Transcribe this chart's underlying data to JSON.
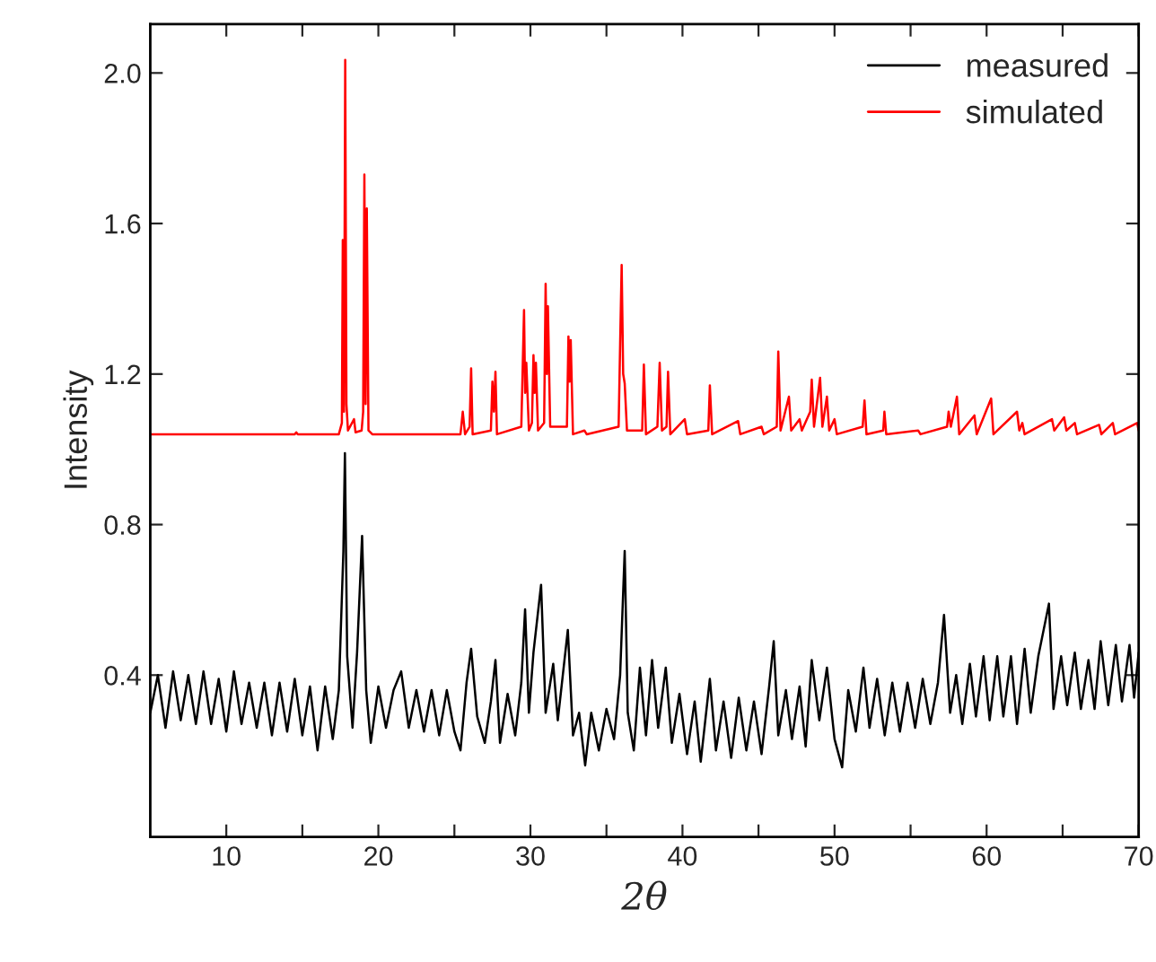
{
  "chart_data": {
    "type": "line",
    "xlabel": "2θ",
    "ylabel": "Intensity",
    "xlim": [
      5,
      70
    ],
    "ylim": [
      -0.03,
      2.13
    ],
    "xticks": [
      10,
      {
        "value": 15,
        "label": null
      },
      20,
      {
        "value": 25,
        "label": null
      },
      30,
      {
        "value": 35,
        "label": null
      },
      40,
      {
        "value": 45,
        "label": null
      },
      50,
      {
        "value": 55,
        "label": null
      },
      60,
      {
        "value": 65,
        "label": null
      },
      70
    ],
    "yticks": [
      0.4,
      0.8,
      1.2,
      1.6,
      {
        "value": 2.0,
        "label": "2.0"
      }
    ],
    "grid": false,
    "legend": "top right",
    "marker": "none",
    "line_style": "solid",
    "series": [
      {
        "name": "measured",
        "color": "#000000",
        "x": [
          5.0,
          5.5,
          6.0,
          6.5,
          7.0,
          7.5,
          8.0,
          8.5,
          9.0,
          9.5,
          10.0,
          10.5,
          11.0,
          11.5,
          12.0,
          12.5,
          13.0,
          13.5,
          14.0,
          14.5,
          15.0,
          15.5,
          16.0,
          16.5,
          17.0,
          17.4,
          17.7,
          17.8,
          17.95,
          18.3,
          18.6,
          18.93,
          19.2,
          19.5,
          20.0,
          20.5,
          21.0,
          21.5,
          22.0,
          22.5,
          23.0,
          23.5,
          24.0,
          24.5,
          25.0,
          25.4,
          25.8,
          26.1,
          26.5,
          27.0,
          27.4,
          27.7,
          28.0,
          28.5,
          29.0,
          29.4,
          29.65,
          29.9,
          30.2,
          30.7,
          31.0,
          31.5,
          31.8,
          32.46,
          32.8,
          33.2,
          33.6,
          34.0,
          34.5,
          35.0,
          35.5,
          35.9,
          36.2,
          36.4,
          36.8,
          37.2,
          37.6,
          38.0,
          38.4,
          38.9,
          39.3,
          39.8,
          40.3,
          40.8,
          41.2,
          41.8,
          42.2,
          42.7,
          43.2,
          43.7,
          44.2,
          44.7,
          45.2,
          45.7,
          46.0,
          46.3,
          46.8,
          47.2,
          47.7,
          48.1,
          48.5,
          49.0,
          49.5,
          50.0,
          50.5,
          50.9,
          51.4,
          51.9,
          52.3,
          52.8,
          53.3,
          53.8,
          54.3,
          54.8,
          55.3,
          55.8,
          56.3,
          56.8,
          57.2,
          57.6,
          58.0,
          58.4,
          58.9,
          59.3,
          59.8,
          60.2,
          60.7,
          61.1,
          61.6,
          62.0,
          62.5,
          62.9,
          63.4,
          64.1,
          64.4,
          64.9,
          65.3,
          65.8,
          66.2,
          66.7,
          67.1,
          67.5,
          68.0,
          68.5,
          68.9,
          69.4,
          69.7,
          70.0
        ],
        "values": [
          0.3,
          0.4,
          0.26,
          0.41,
          0.28,
          0.4,
          0.27,
          0.41,
          0.27,
          0.39,
          0.25,
          0.41,
          0.27,
          0.38,
          0.26,
          0.38,
          0.24,
          0.38,
          0.25,
          0.39,
          0.24,
          0.37,
          0.2,
          0.37,
          0.23,
          0.36,
          0.73,
          0.99,
          0.45,
          0.26,
          0.46,
          0.77,
          0.36,
          0.22,
          0.37,
          0.26,
          0.36,
          0.41,
          0.26,
          0.36,
          0.25,
          0.36,
          0.24,
          0.36,
          0.25,
          0.2,
          0.38,
          0.47,
          0.29,
          0.22,
          0.33,
          0.44,
          0.22,
          0.35,
          0.24,
          0.38,
          0.575,
          0.3,
          0.46,
          0.64,
          0.3,
          0.43,
          0.28,
          0.52,
          0.24,
          0.3,
          0.16,
          0.3,
          0.2,
          0.31,
          0.23,
          0.4,
          0.73,
          0.3,
          0.2,
          0.42,
          0.24,
          0.44,
          0.26,
          0.42,
          0.22,
          0.35,
          0.19,
          0.33,
          0.17,
          0.39,
          0.2,
          0.33,
          0.18,
          0.34,
          0.2,
          0.33,
          0.19,
          0.37,
          0.49,
          0.24,
          0.36,
          0.23,
          0.37,
          0.21,
          0.44,
          0.28,
          0.42,
          0.23,
          0.155,
          0.36,
          0.25,
          0.42,
          0.26,
          0.39,
          0.24,
          0.38,
          0.25,
          0.38,
          0.26,
          0.39,
          0.27,
          0.38,
          0.56,
          0.3,
          0.4,
          0.27,
          0.43,
          0.29,
          0.45,
          0.28,
          0.45,
          0.29,
          0.45,
          0.27,
          0.47,
          0.3,
          0.45,
          0.59,
          0.31,
          0.45,
          0.32,
          0.46,
          0.31,
          0.44,
          0.31,
          0.49,
          0.32,
          0.48,
          0.33,
          0.48,
          0.34,
          0.46
        ]
      },
      {
        "name": "simulated",
        "color": "#ff0000",
        "x": [
          5,
          14.5,
          14.6,
          14.7,
          17.4,
          17.6,
          17.66,
          17.74,
          17.82,
          17.9,
          18.0,
          18.4,
          18.5,
          18.9,
          19.0,
          19.08,
          19.16,
          19.24,
          19.35,
          19.6,
          25.4,
          25.55,
          25.7,
          26.0,
          26.1,
          26.2,
          27.4,
          27.5,
          27.6,
          27.7,
          27.8,
          29.4,
          29.58,
          29.65,
          29.73,
          29.9,
          30.1,
          30.2,
          30.28,
          30.36,
          30.5,
          30.9,
          31.0,
          31.08,
          31.15,
          31.3,
          32.4,
          32.5,
          32.58,
          32.65,
          32.8,
          33.55,
          33.7,
          35.8,
          35.9,
          36.0,
          36.1,
          36.2,
          36.35,
          37.35,
          37.46,
          37.6,
          38.35,
          38.5,
          38.65,
          38.95,
          39.05,
          39.2,
          40.15,
          40.3,
          41.7,
          41.8,
          41.95,
          43.66,
          43.8,
          45.2,
          45.35,
          46.2,
          46.3,
          46.45,
          47.0,
          47.15,
          47.7,
          47.85,
          48.4,
          48.5,
          48.65,
          49.05,
          49.2,
          49.5,
          49.65,
          50.0,
          50.15,
          51.85,
          51.97,
          52.1,
          53.2,
          53.28,
          53.4,
          55.5,
          55.65,
          57.4,
          57.5,
          57.65,
          58.05,
          58.2,
          59.2,
          59.35,
          60.3,
          60.45,
          62.0,
          62.15,
          62.35,
          62.5,
          64.3,
          64.45,
          65.1,
          65.25,
          65.8,
          65.95,
          67.4,
          67.55,
          68.3,
          68.45,
          69.9,
          70.0
        ],
        "values": [
          1.04,
          1.04,
          1.045,
          1.04,
          1.04,
          1.07,
          1.556,
          1.1,
          2.035,
          1.12,
          1.05,
          1.08,
          1.045,
          1.05,
          1.1,
          1.73,
          1.12,
          1.64,
          1.05,
          1.04,
          1.04,
          1.1,
          1.04,
          1.06,
          1.215,
          1.04,
          1.05,
          1.18,
          1.1,
          1.206,
          1.04,
          1.06,
          1.37,
          1.15,
          1.23,
          1.05,
          1.07,
          1.25,
          1.15,
          1.23,
          1.05,
          1.07,
          1.44,
          1.2,
          1.38,
          1.06,
          1.06,
          1.3,
          1.18,
          1.29,
          1.04,
          1.05,
          1.04,
          1.06,
          1.28,
          1.49,
          1.2,
          1.175,
          1.05,
          1.05,
          1.225,
          1.04,
          1.06,
          1.23,
          1.05,
          1.06,
          1.206,
          1.04,
          1.08,
          1.04,
          1.05,
          1.17,
          1.04,
          1.075,
          1.04,
          1.06,
          1.04,
          1.06,
          1.26,
          1.05,
          1.14,
          1.05,
          1.08,
          1.05,
          1.1,
          1.185,
          1.06,
          1.19,
          1.06,
          1.14,
          1.05,
          1.08,
          1.04,
          1.06,
          1.13,
          1.04,
          1.05,
          1.1,
          1.04,
          1.05,
          1.04,
          1.06,
          1.1,
          1.06,
          1.14,
          1.04,
          1.09,
          1.04,
          1.135,
          1.04,
          1.1,
          1.05,
          1.07,
          1.04,
          1.08,
          1.05,
          1.085,
          1.05,
          1.07,
          1.04,
          1.065,
          1.04,
          1.07,
          1.04,
          1.07,
          1.05
        ]
      }
    ]
  }
}
